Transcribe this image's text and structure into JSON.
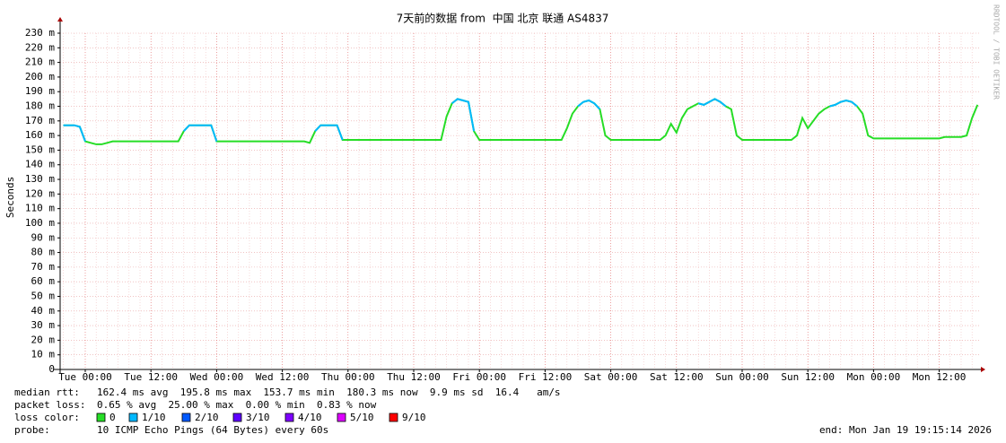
{
  "chart_data": {
    "type": "line",
    "title": "7天前的数据 from  中国 北京 联通 AS4837",
    "y_label": "Seconds",
    "watermark": "RRDTOOL / TOBI OETIKER",
    "categories": [
      null,
      null,
      null,
      null,
      "Tue 00:00",
      null,
      null,
      null,
      null,
      null,
      null,
      null,
      null,
      null,
      null,
      null,
      "Tue 12:00",
      null,
      null,
      null,
      null,
      null,
      null,
      null,
      null,
      null,
      null,
      null,
      "Wed 00:00",
      null,
      null,
      null,
      null,
      null,
      null,
      null,
      null,
      null,
      null,
      null,
      "Wed 12:00",
      null,
      null,
      null,
      null,
      null,
      null,
      null,
      null,
      null,
      null,
      null,
      "Thu 00:00",
      null,
      null,
      null,
      null,
      null,
      null,
      null,
      null,
      null,
      null,
      null,
      "Thu 12:00",
      null,
      null,
      null,
      null,
      null,
      null,
      null,
      null,
      null,
      null,
      null,
      "Fri 00:00",
      null,
      null,
      null,
      null,
      null,
      null,
      null,
      null,
      null,
      null,
      null,
      "Fri 12:00",
      null,
      null,
      null,
      null,
      null,
      null,
      null,
      null,
      null,
      null,
      null,
      "Sat 00:00",
      null,
      null,
      null,
      null,
      null,
      null,
      null,
      null,
      null,
      null,
      null,
      "Sat 12:00",
      null,
      null,
      null,
      null,
      null,
      null,
      null,
      null,
      null,
      null,
      null,
      "Sun 00:00",
      null,
      null,
      null,
      null,
      null,
      null,
      null,
      null,
      null,
      null,
      null,
      "Sun 12:00",
      null,
      null,
      null,
      null,
      null,
      null,
      null,
      null,
      null,
      null,
      null,
      "Mon 00:00",
      null,
      null,
      null,
      null,
      null,
      null,
      null,
      null,
      null,
      null,
      null,
      "Mon 12:00",
      null,
      null,
      null,
      null,
      null,
      null,
      null
    ],
    "values": [
      167,
      167,
      167,
      166,
      156,
      155,
      154,
      154,
      155,
      156,
      156,
      156,
      156,
      156,
      156,
      156,
      156,
      156,
      156,
      156,
      156,
      156,
      163,
      167,
      167,
      167,
      167,
      167,
      156,
      156,
      156,
      156,
      156,
      156,
      156,
      156,
      156,
      156,
      156,
      156,
      156,
      156,
      156,
      156,
      156,
      155,
      163,
      167,
      167,
      167,
      167,
      157,
      157,
      157,
      157,
      157,
      157,
      157,
      157,
      157,
      157,
      157,
      157,
      157,
      157,
      157,
      157,
      157,
      157,
      157,
      173,
      182,
      185,
      184,
      183,
      163,
      157,
      157,
      157,
      157,
      157,
      157,
      157,
      157,
      157,
      157,
      157,
      157,
      157,
      157,
      157,
      157,
      165,
      175,
      180,
      183,
      184,
      182,
      178,
      160,
      157,
      157,
      157,
      157,
      157,
      157,
      157,
      157,
      157,
      157,
      160,
      168,
      162,
      172,
      178,
      180,
      182,
      181,
      183,
      185,
      183,
      180,
      178,
      160,
      157,
      157,
      157,
      157,
      157,
      157,
      157,
      157,
      157,
      157,
      160,
      172,
      165,
      170,
      175,
      178,
      180,
      181,
      183,
      184,
      183,
      180,
      175,
      160,
      158,
      158,
      158,
      158,
      158,
      158,
      158,
      158,
      158,
      158,
      158,
      158,
      158,
      159,
      159,
      159,
      159,
      160,
      172,
      181
    ],
    "loss_index": [
      1,
      1,
      1,
      1,
      0,
      0,
      0,
      0,
      0,
      0,
      0,
      0,
      0,
      0,
      0,
      0,
      0,
      0,
      0,
      0,
      0,
      0,
      0,
      1,
      1,
      1,
      1,
      1,
      0,
      0,
      0,
      0,
      0,
      0,
      0,
      0,
      0,
      0,
      0,
      0,
      0,
      0,
      0,
      0,
      0,
      0,
      0,
      1,
      1,
      1,
      1,
      0,
      0,
      0,
      0,
      0,
      0,
      0,
      0,
      0,
      0,
      0,
      0,
      0,
      0,
      0,
      0,
      0,
      0,
      0,
      0,
      0,
      1,
      1,
      1,
      0,
      0,
      0,
      0,
      0,
      0,
      0,
      0,
      0,
      0,
      0,
      0,
      0,
      0,
      0,
      0,
      0,
      0,
      0,
      0,
      1,
      1,
      1,
      0,
      0,
      0,
      0,
      0,
      0,
      0,
      0,
      0,
      0,
      0,
      0,
      0,
      0,
      0,
      0,
      0,
      0,
      0,
      1,
      1,
      1,
      1,
      0,
      0,
      0,
      0,
      0,
      0,
      0,
      0,
      0,
      0,
      0,
      0,
      0,
      0,
      0,
      0,
      0,
      0,
      0,
      0,
      1,
      1,
      1,
      1,
      0,
      0,
      0,
      0,
      0,
      0,
      0,
      0,
      0,
      0,
      0,
      0,
      0,
      0,
      0,
      0,
      0,
      0,
      0,
      0,
      0,
      0,
      0
    ],
    "ylim": [
      0,
      230
    ],
    "yticks": [
      0,
      {
        "value": 10,
        "label": "10 m"
      },
      {
        "value": 20,
        "label": "20 m"
      },
      {
        "value": 30,
        "label": "30 m"
      },
      {
        "value": 40,
        "label": "40 m"
      },
      {
        "value": 50,
        "label": "50 m"
      },
      {
        "value": 60,
        "label": "60 m"
      },
      {
        "value": 70,
        "label": "70 m"
      },
      {
        "value": 80,
        "label": "80 m"
      },
      {
        "value": 90,
        "label": "90 m"
      },
      {
        "value": 100,
        "label": "100 m"
      },
      {
        "value": 110,
        "label": "110 m"
      },
      {
        "value": 120,
        "label": "120 m"
      },
      {
        "value": 130,
        "label": "130 m"
      },
      {
        "value": 140,
        "label": "140 m"
      },
      {
        "value": 150,
        "label": "150 m"
      },
      {
        "value": 160,
        "label": "160 m"
      },
      {
        "value": 170,
        "label": "170 m"
      },
      {
        "value": 180,
        "label": "180 m"
      },
      {
        "value": 190,
        "label": "190 m"
      },
      {
        "value": 200,
        "label": "200 m"
      },
      {
        "value": 210,
        "label": "210 m"
      },
      {
        "value": 220,
        "label": "220 m"
      },
      {
        "value": 230,
        "label": "230 m"
      }
    ],
    "grid": true,
    "stats": [
      {
        "label": "median rtt:",
        "text": "162.4 ms avg  195.8 ms max  153.7 ms min  180.3 ms now  9.9 ms sd  16.4   am/s"
      },
      {
        "label": "packet loss:",
        "text": "0.65 % avg  25.00 % max  0.00 % min  0.83 % now"
      }
    ],
    "loss_label": "loss color:",
    "loss_colors": [
      {
        "name": "0",
        "color": "#26dd26"
      },
      {
        "name": "1/10",
        "color": "#00b8ff"
      },
      {
        "name": "2/10",
        "color": "#0059ff"
      },
      {
        "name": "3/10",
        "color": "#5e00ff"
      },
      {
        "name": "4/10",
        "color": "#7e00ff"
      },
      {
        "name": "5/10",
        "color": "#dd00ff"
      },
      {
        "name": "9/10",
        "color": "#ff0000"
      }
    ],
    "probe_label": "probe:",
    "probe": "10 ICMP Echo Pings (64 Bytes) every 60s",
    "end": "end: Mon Jan 19 19:15:14 2026"
  }
}
